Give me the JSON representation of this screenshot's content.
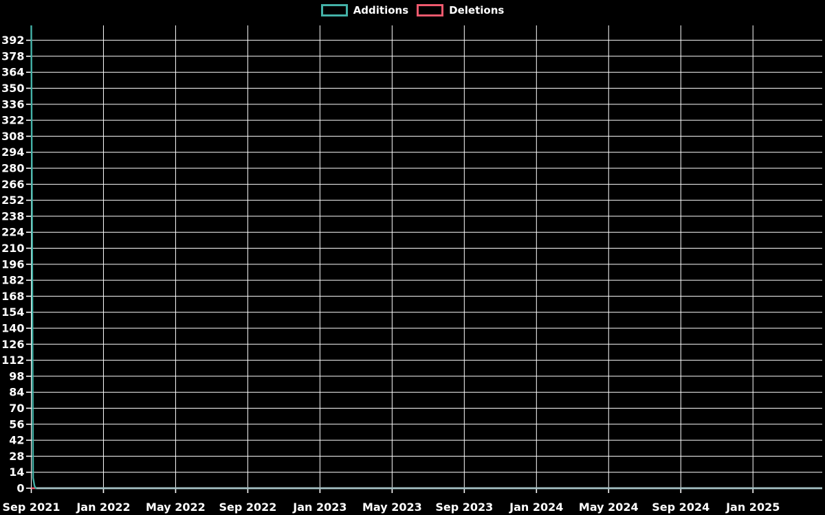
{
  "chart_data": {
    "type": "line",
    "title": "",
    "legend_position": "top-center",
    "background_color": "#000000",
    "grid": true,
    "grid_color": "#ffffff",
    "text_color": "#ffffff",
    "zero_overlap_color": "#a6c2c6",
    "x_axis": {
      "range": [
        0,
        43.84
      ],
      "ticks": [
        {
          "label": "Sep 2021",
          "pos": 0
        },
        {
          "label": "Jan 2022",
          "pos": 4
        },
        {
          "label": "May 2022",
          "pos": 8
        },
        {
          "label": "Sep 2022",
          "pos": 12
        },
        {
          "label": "Jan 2023",
          "pos": 16
        },
        {
          "label": "May 2023",
          "pos": 20
        },
        {
          "label": "Sep 2023",
          "pos": 24
        },
        {
          "label": "Jan 2024",
          "pos": 28
        },
        {
          "label": "May 2024",
          "pos": 32
        },
        {
          "label": "Sep 2024",
          "pos": 36
        },
        {
          "label": "Jan 2025",
          "pos": 40
        }
      ]
    },
    "y_axis": {
      "range": [
        0,
        405
      ],
      "tick_values": [
        0,
        14,
        28,
        42,
        56,
        70,
        84,
        98,
        112,
        126,
        140,
        154,
        168,
        182,
        196,
        210,
        224,
        238,
        252,
        266,
        280,
        294,
        308,
        322,
        336,
        350,
        364,
        378,
        392
      ]
    },
    "series": [
      {
        "name": "Additions",
        "color": "#44b2a8",
        "points": [
          [
            0,
            405
          ],
          [
            0.1,
            9
          ],
          [
            0.18,
            2
          ],
          [
            0.25,
            0
          ],
          [
            43.84,
            0
          ]
        ]
      },
      {
        "name": "Deletions",
        "color": "#f05a6e",
        "points": [
          [
            0,
            0
          ],
          [
            43.84,
            0
          ]
        ]
      }
    ]
  }
}
